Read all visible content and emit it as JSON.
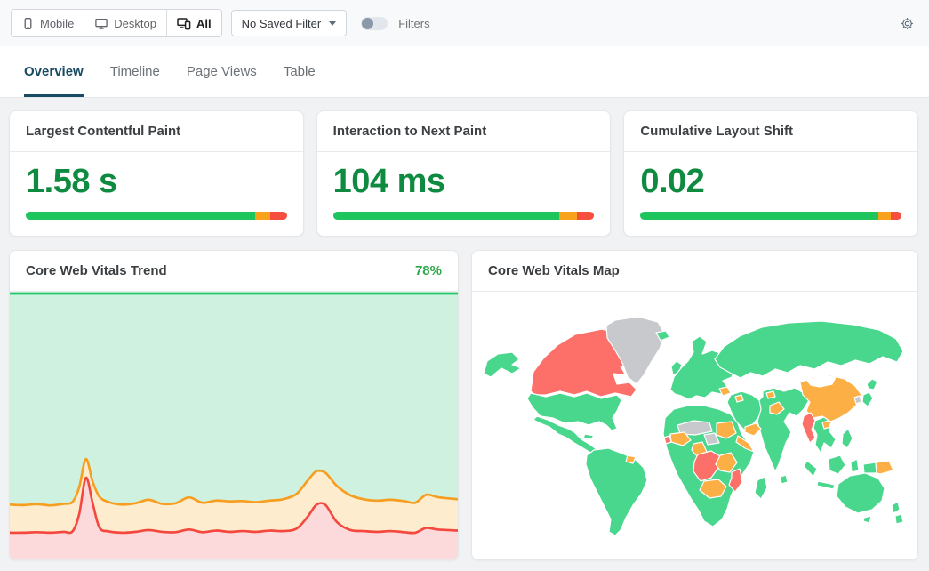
{
  "toolbar": {
    "device_buttons": [
      {
        "label": "Mobile",
        "icon": "mobile-icon",
        "active": false
      },
      {
        "label": "Desktop",
        "icon": "desktop-icon",
        "active": false
      },
      {
        "label": "All",
        "icon": "devices-icon",
        "active": true
      }
    ],
    "saved_filter_label": "No Saved Filter",
    "filters_label": "Filters",
    "filters_toggle_on": false
  },
  "tabs": [
    {
      "label": "Overview",
      "active": true
    },
    {
      "label": "Timeline",
      "active": false
    },
    {
      "label": "Page Views",
      "active": false
    },
    {
      "label": "Table",
      "active": false
    }
  ],
  "metrics": [
    {
      "title": "Largest Contentful Paint",
      "value": "1.58 s",
      "bar": {
        "good": 87.8,
        "needs_improvement": 6.0,
        "poor": 6.2
      }
    },
    {
      "title": "Interaction to Next Paint",
      "value": "104 ms",
      "bar": {
        "good": 86.5,
        "needs_improvement": 6.8,
        "poor": 6.7
      }
    },
    {
      "title": "Cumulative Layout Shift",
      "value": "0.02",
      "bar": {
        "good": 91.3,
        "needs_improvement": 4.5,
        "poor": 4.2
      }
    }
  ],
  "trend_card": {
    "title": "Core Web Vitals Trend",
    "percent_label": "78%"
  },
  "map_card": {
    "title": "Core Web Vitals Map"
  },
  "colors": {
    "value_green": "#0e8b40",
    "percent_green": "#2fa84c",
    "bar_good": "#1ec55d",
    "bar_ni": "#f9a21b",
    "bar_poor": "#f74f3f",
    "trend_good_fill": "#cff2e0",
    "trend_ni_fill": "#fdeccd",
    "trend_poor_fill": "#fcd9da",
    "trend_good_line": "#25c667",
    "trend_ni_line": "#f79d1f",
    "trend_poor_line": "#f4483f",
    "map_good": "#49d68d",
    "map_ni": "#fbaf45",
    "map_poor": "#fc7069",
    "map_no_data": "#c7c9cc",
    "map_none": "#ffffff"
  },
  "chart_data": [
    {
      "type": "area",
      "title": "Core Web Vitals Trend",
      "pass_rate_label": "78%",
      "stacking": "percent",
      "ylim": [
        0,
        100
      ],
      "axes_visible": false,
      "legend": false,
      "series_order_bottom_to_top": [
        "poor",
        "needs_improvement",
        "good"
      ],
      "x_percent": [
        0,
        3,
        6,
        9,
        12,
        14,
        15.5,
        17,
        18.5,
        20,
        22,
        25,
        28,
        31,
        34,
        37,
        40,
        43,
        46,
        49,
        52,
        55,
        58,
        61,
        64,
        66.5,
        68.5,
        70.5,
        73,
        76,
        79,
        82,
        85,
        88,
        90.5,
        93,
        95.5,
        100
      ],
      "poor_cumulative": [
        10,
        10,
        10.2,
        10,
        10.3,
        10.5,
        17,
        30.5,
        21,
        12,
        10.5,
        10,
        10.3,
        11,
        10.3,
        10.2,
        11.2,
        10.2,
        10.8,
        10.3,
        10.6,
        10.3,
        10.8,
        10.6,
        11.5,
        16,
        20.5,
        20.3,
        14,
        11,
        10.6,
        10.3,
        10.6,
        10.2,
        10,
        11.8,
        11.2,
        10.8
      ],
      "needs_improvement_cumulative": [
        20.5,
        20.3,
        20.7,
        20.2,
        20.8,
        21.5,
        27,
        37.5,
        29,
        23.5,
        21.5,
        20.5,
        21,
        22.3,
        20.8,
        21,
        23.2,
        21.2,
        22,
        21.7,
        21.8,
        21.4,
        22,
        22.5,
        24.5,
        29.5,
        33,
        32.3,
        27.5,
        24,
        22.5,
        22,
        22.3,
        21.8,
        21.2,
        24.2,
        23.3,
        22.5
      ],
      "good_top": 100
    },
    {
      "type": "choropleth",
      "title": "Core Web Vitals Map",
      "legend": false,
      "status_values": [
        "good",
        "needs-improvement",
        "poor",
        "no-data",
        "none"
      ],
      "regions": {
        "canada": "poor",
        "alaska": "good",
        "greenland": "no-data",
        "usa": "good",
        "mexico_central_america": "good",
        "cuba": "good",
        "south_america": "good",
        "french_guiana": "needs-improvement",
        "iceland": "good",
        "uk_ireland": "good",
        "europe": "good",
        "romania": "needs-improvement",
        "russia": "good",
        "arabia_mideast": "good",
        "syria": "needs-improvement",
        "yemen_oman": "needs-improvement",
        "india_central_asia": "good",
        "sri_lanka": "good",
        "uzbekistan": "needs-improvement",
        "afghanistan": "needs-improvement",
        "china": "needs-improvement",
        "mongolia": "none",
        "south_korea": "no-data",
        "japan_north": "good",
        "japan_main": "good",
        "myanmar": "poor",
        "indochina": "good",
        "laos": "needs-improvement",
        "philippines": "good",
        "sumatra": "good",
        "java": "good",
        "borneo": "good",
        "sulawesi": "good",
        "west_new_guinea": "good",
        "papua_new_guinea": "needs-improvement",
        "australia": "good",
        "tasmania": "good",
        "new_zealand_north": "good",
        "new_zealand_south": "good",
        "africa_base": "good",
        "madagascar": "good",
        "sahel_west": "no-data",
        "chad_car": "no-data",
        "sudan": "needs-improvement",
        "horn_of_africa": "needs-improvement",
        "west_africa_gulf": "needs-improvement",
        "guinea": "poor",
        "cameroon_gabon": "needs-improvement",
        "drc_angola": "poor",
        "zambia_tanzania": "needs-improvement",
        "mozambique": "poor",
        "zimbabwe_botswana_namibia": "needs-improvement"
      }
    }
  ]
}
